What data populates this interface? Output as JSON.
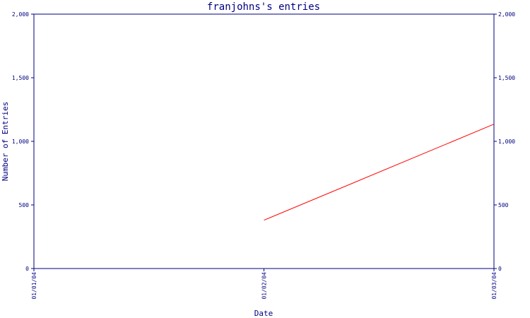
{
  "chart_data": {
    "type": "line",
    "title": "franjohns's entries",
    "xlabel": "Date",
    "ylabel": "Number of Entries",
    "x_ticks": [
      "01/01/04",
      "01/02/04",
      "01/03/04"
    ],
    "ylim": [
      0,
      2000
    ],
    "y_ticks": [
      0,
      500,
      1000,
      1500,
      2000
    ],
    "y_tick_labels": [
      "0",
      "500",
      "1,000",
      "1,500",
      "2,000"
    ],
    "series": [
      {
        "x": [
          "01/02/04",
          "01/03/04"
        ],
        "values": [
          380,
          1135
        ],
        "color": "#ff0000"
      }
    ],
    "axis_color": "#000080",
    "grid": false,
    "right_axis": true
  }
}
